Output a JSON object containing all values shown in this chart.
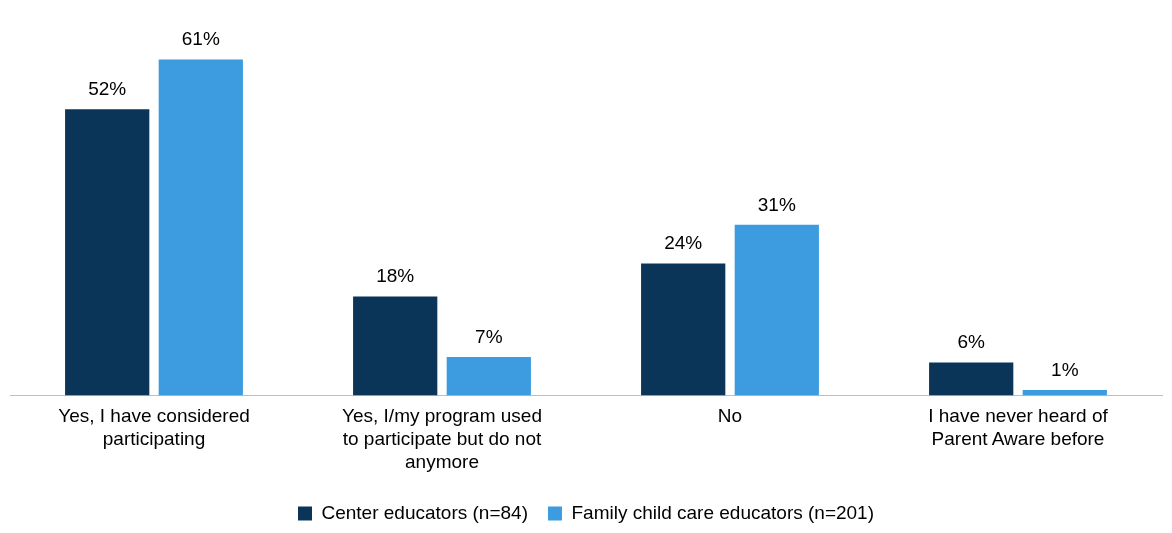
{
  "chart_data": {
    "type": "bar",
    "categories": [
      "Yes, I have considered participating",
      "Yes, I/my program used to participate but do not anymore",
      "No",
      "I have never heard of Parent Aware before"
    ],
    "series": [
      {
        "name": "Center educators (n=84)",
        "color": "#0b3558",
        "values": [
          52,
          18,
          24,
          6
        ],
        "value_labels": [
          "52%",
          "18%",
          "24%",
          "6%"
        ]
      },
      {
        "name": "Family child care educators (n=201)",
        "color": "#3d9be0",
        "values": [
          61,
          7,
          31,
          1
        ],
        "value_labels": [
          "61%",
          "7%",
          "31%",
          "1%"
        ]
      }
    ],
    "tick_labels": "x",
    "legend": "bottom",
    "grid": false
  }
}
